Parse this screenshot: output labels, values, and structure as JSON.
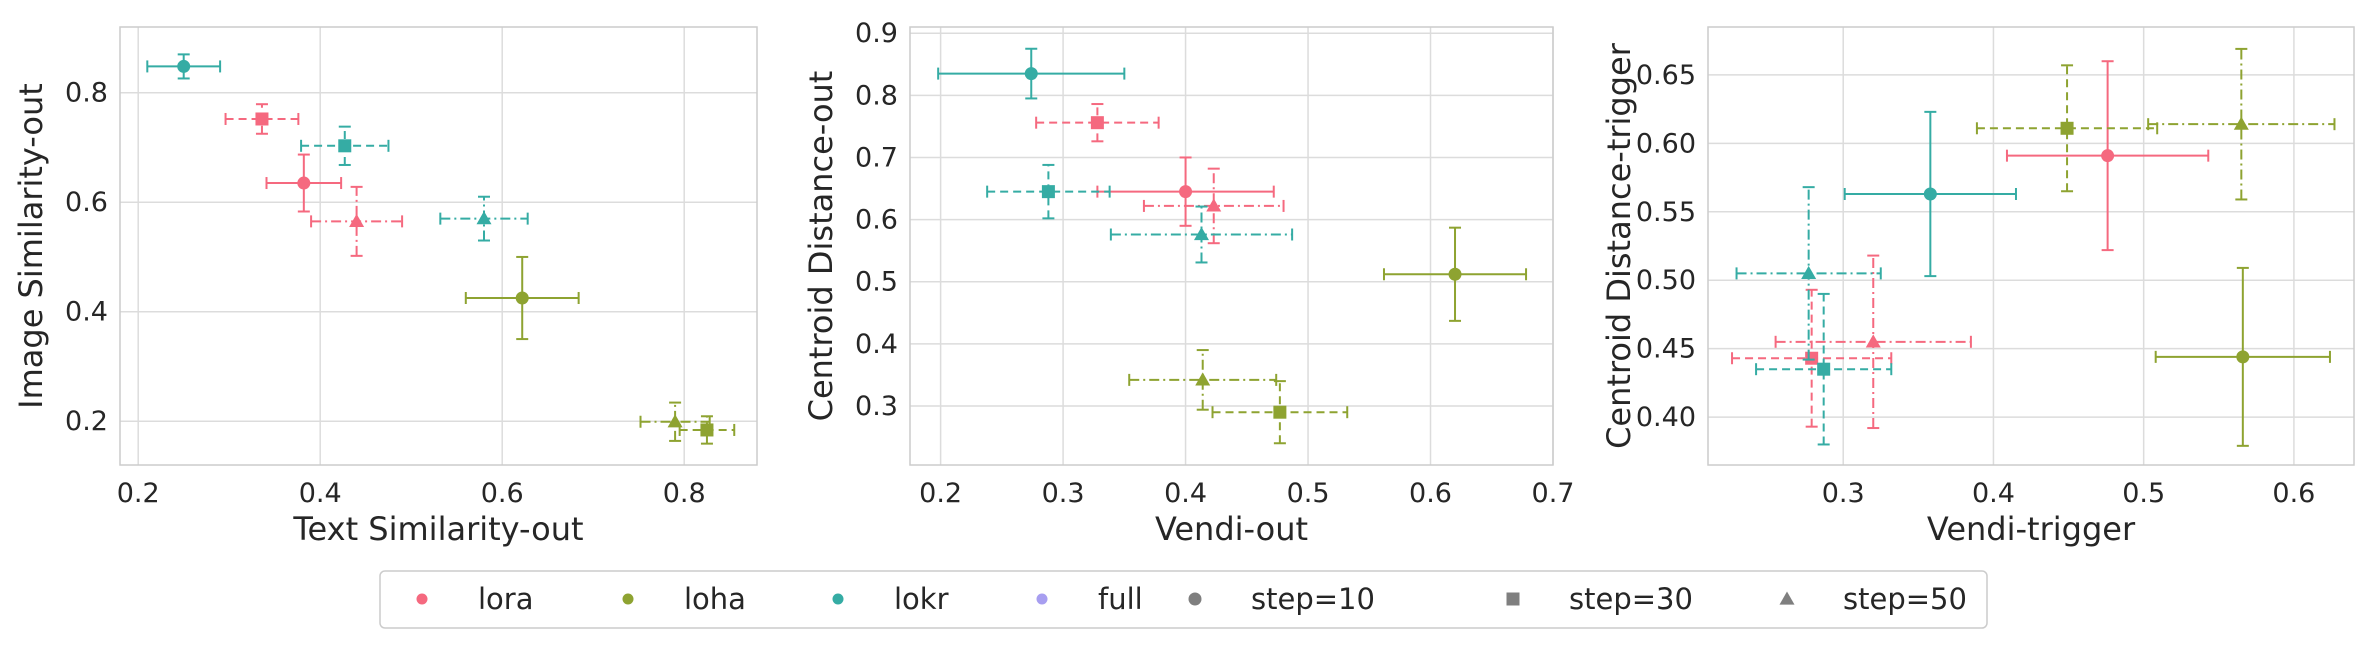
{
  "chart_data": [
    {
      "type": "scatter",
      "xlabel": "Text Similarity-out",
      "ylabel": "Image Similarity-out",
      "xlim": [
        0.18,
        0.88
      ],
      "ylim": [
        0.12,
        0.92
      ],
      "xticks": [
        "0.2",
        "0.4",
        "0.6",
        "0.8"
      ],
      "yticks": [
        "0.2",
        "0.4",
        "0.6",
        "0.8"
      ],
      "grid": true,
      "series": [
        {
          "name": "lora",
          "step": "step=10",
          "x": 0.382,
          "y": 0.635,
          "xerr": 0.041,
          "yerr": 0.052
        },
        {
          "name": "lora",
          "step": "step=30",
          "x": 0.336,
          "y": 0.752,
          "xerr": 0.04,
          "yerr": 0.027
        },
        {
          "name": "lora",
          "step": "step=50",
          "x": 0.44,
          "y": 0.565,
          "xerr": 0.05,
          "yerr": 0.063
        },
        {
          "name": "loha",
          "step": "step=10",
          "x": 0.622,
          "y": 0.425,
          "xerr": 0.062,
          "yerr": 0.075
        },
        {
          "name": "loha",
          "step": "step=30",
          "x": 0.825,
          "y": 0.184,
          "xerr": 0.03,
          "yerr": 0.025
        },
        {
          "name": "loha",
          "step": "step=50",
          "x": 0.79,
          "y": 0.199,
          "xerr": 0.038,
          "yerr": 0.035
        },
        {
          "name": "lokr",
          "step": "step=10",
          "x": 0.25,
          "y": 0.848,
          "xerr": 0.04,
          "yerr": 0.022
        },
        {
          "name": "lokr",
          "step": "step=30",
          "x": 0.427,
          "y": 0.703,
          "xerr": 0.048,
          "yerr": 0.035
        },
        {
          "name": "lokr",
          "step": "step=50",
          "x": 0.58,
          "y": 0.57,
          "xerr": 0.048,
          "yerr": 0.04
        }
      ]
    },
    {
      "type": "scatter",
      "xlabel": "Vendi-out",
      "ylabel": "Centroid Distance-out",
      "xlim": [
        0.175,
        0.7
      ],
      "ylim": [
        0.205,
        0.91
      ],
      "xticks": [
        "0.2",
        "0.3",
        "0.4",
        "0.5",
        "0.6",
        "0.7"
      ],
      "yticks": [
        "0.3",
        "0.4",
        "0.5",
        "0.6",
        "0.7",
        "0.8",
        "0.9"
      ],
      "grid": true,
      "series": [
        {
          "name": "lora",
          "step": "step=10",
          "x": 0.4,
          "y": 0.645,
          "xerr": 0.072,
          "yerr": 0.055
        },
        {
          "name": "lora",
          "step": "step=30",
          "x": 0.328,
          "y": 0.756,
          "xerr": 0.05,
          "yerr": 0.03
        },
        {
          "name": "lora",
          "step": "step=50",
          "x": 0.423,
          "y": 0.622,
          "xerr": 0.057,
          "yerr": 0.06
        },
        {
          "name": "loha",
          "step": "step=10",
          "x": 0.62,
          "y": 0.512,
          "xerr": 0.058,
          "yerr": 0.075
        },
        {
          "name": "loha",
          "step": "step=30",
          "x": 0.477,
          "y": 0.29,
          "xerr": 0.055,
          "yerr": 0.05
        },
        {
          "name": "loha",
          "step": "step=50",
          "x": 0.414,
          "y": 0.342,
          "xerr": 0.06,
          "yerr": 0.048
        },
        {
          "name": "lokr",
          "step": "step=10",
          "x": 0.274,
          "y": 0.835,
          "xerr": 0.076,
          "yerr": 0.04
        },
        {
          "name": "lokr",
          "step": "step=30",
          "x": 0.288,
          "y": 0.645,
          "xerr": 0.05,
          "yerr": 0.043
        },
        {
          "name": "lokr",
          "step": "step=50",
          "x": 0.413,
          "y": 0.576,
          "xerr": 0.074,
          "yerr": 0.045
        }
      ]
    },
    {
      "type": "scatter",
      "xlabel": "Vendi-trigger",
      "ylabel": "Centroid Distance-trigger",
      "xlim": [
        0.21,
        0.64
      ],
      "ylim": [
        0.365,
        0.685
      ],
      "xticks": [
        "0.3",
        "0.4",
        "0.5",
        "0.6"
      ],
      "yticks": [
        "0.40",
        "0.45",
        "0.50",
        "0.55",
        "0.60",
        "0.65"
      ],
      "grid": true,
      "series": [
        {
          "name": "lora",
          "step": "step=10",
          "x": 0.476,
          "y": 0.591,
          "xerr": 0.067,
          "yerr": 0.069
        },
        {
          "name": "lora",
          "step": "step=30",
          "x": 0.279,
          "y": 0.443,
          "xerr": 0.053,
          "yerr": 0.05
        },
        {
          "name": "lora",
          "step": "step=50",
          "x": 0.32,
          "y": 0.455,
          "xerr": 0.065,
          "yerr": 0.063
        },
        {
          "name": "loha",
          "step": "step=10",
          "x": 0.566,
          "y": 0.444,
          "xerr": 0.058,
          "yerr": 0.065
        },
        {
          "name": "loha",
          "step": "step=30",
          "x": 0.449,
          "y": 0.611,
          "xerr": 0.06,
          "yerr": 0.046
        },
        {
          "name": "loha",
          "step": "step=50",
          "x": 0.565,
          "y": 0.614,
          "xerr": 0.062,
          "yerr": 0.055
        },
        {
          "name": "lokr",
          "step": "step=10",
          "x": 0.358,
          "y": 0.563,
          "xerr": 0.057,
          "yerr": 0.06
        },
        {
          "name": "lokr",
          "step": "step=30",
          "x": 0.287,
          "y": 0.435,
          "xerr": 0.045,
          "yerr": 0.055
        },
        {
          "name": "lokr",
          "step": "step=50",
          "x": 0.277,
          "y": 0.505,
          "xerr": 0.048,
          "yerr": 0.063
        }
      ]
    }
  ],
  "legend": {
    "placement": "bottom-center",
    "entries": [
      {
        "label": "lora",
        "kind": "color",
        "color": "#f5697f"
      },
      {
        "label": "loha",
        "kind": "color",
        "color": "#8ea331"
      },
      {
        "label": "lokr",
        "kind": "color",
        "color": "#35aca4"
      },
      {
        "label": "full",
        "kind": "color",
        "color": "#a79ef0"
      },
      {
        "label": "step=10",
        "kind": "marker",
        "marker": "circle",
        "color": "#7f7f7f"
      },
      {
        "label": "step=30",
        "kind": "marker",
        "marker": "square",
        "color": "#7f7f7f"
      },
      {
        "label": "step=50",
        "kind": "marker",
        "marker": "triangle",
        "color": "#7f7f7f"
      }
    ]
  },
  "style": {
    "colors": {
      "lora": "#f5697f",
      "loha": "#8ea331",
      "lokr": "#35aca4",
      "full": "#a79ef0"
    },
    "markers": {
      "step=10": "circle",
      "step=30": "square",
      "step=50": "triangle"
    },
    "linestyles": {
      "step=10": "solid",
      "step=30": "dashed",
      "step=50": "dashdot"
    }
  }
}
